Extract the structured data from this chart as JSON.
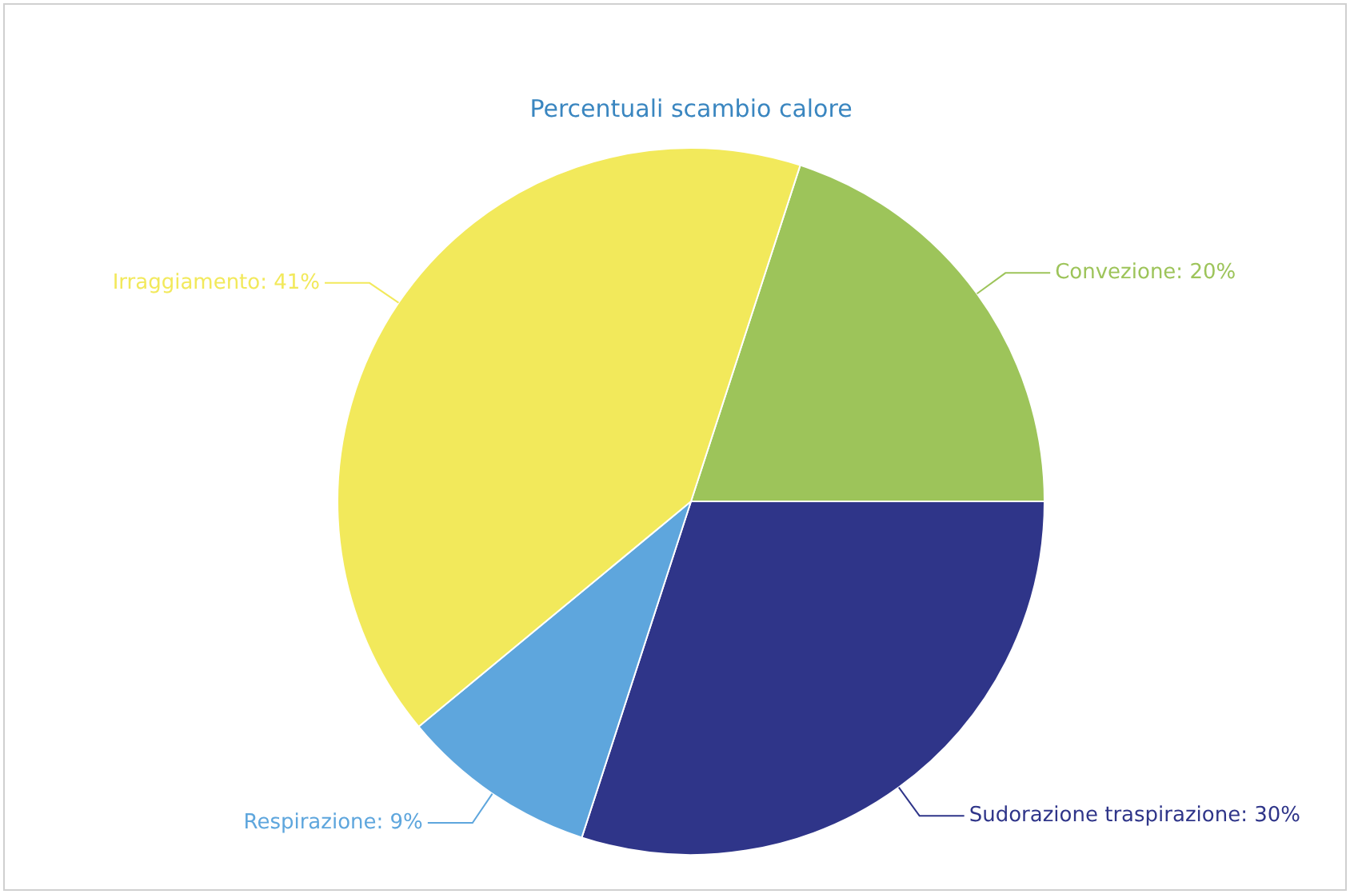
{
  "chart_data": {
    "type": "pie",
    "title": "Percentuali scambio calore",
    "categories": [
      "Convezione",
      "Sudorazione traspirazione",
      "Respirazione",
      "Irraggiamento"
    ],
    "values": [
      20,
      30,
      9,
      41
    ],
    "value_labels": [
      "20%",
      "30%",
      "9%",
      "41%"
    ],
    "colors": [
      "#9dc45a",
      "#2f3589",
      "#5ea6dd",
      "#f2e95b"
    ],
    "legend": false
  }
}
